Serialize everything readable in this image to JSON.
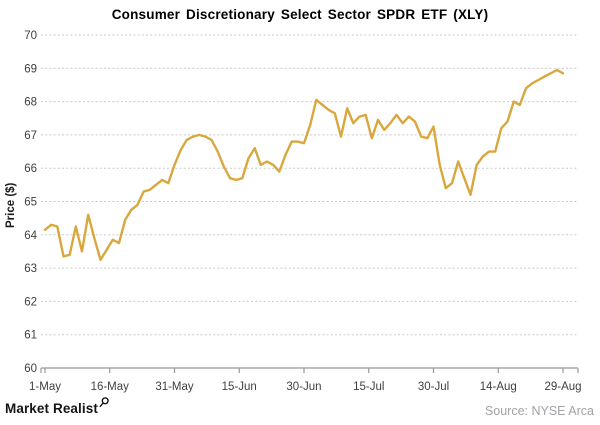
{
  "footer": {
    "brand": "Market Realist",
    "brand_icon": "magnifier-icon",
    "source": "Source: NYSE Arca"
  },
  "colors": {
    "line": "#D8A73E",
    "grid": "#c9c9c9",
    "axis": "#999999",
    "tick_text": "#404040",
    "title_text": "#000000",
    "source_text": "#a2a2a7"
  },
  "chart_data": {
    "type": "line",
    "title": "Consumer Discretionary Select Sector SPDR ETF (XLY)",
    "xlabel": "",
    "ylabel": "Price ($)",
    "ylim": [
      60,
      70
    ],
    "y_ticks": [
      60,
      61,
      62,
      63,
      64,
      65,
      66,
      67,
      68,
      69,
      70
    ],
    "x_tick_labels": [
      "1-May",
      "16-May",
      "31-May",
      "15-Jun",
      "30-Jun",
      "15-Jul",
      "30-Jul",
      "14-Aug",
      "29-Aug"
    ],
    "grid": "horizontal-dashed",
    "legend": "none",
    "series": [
      {
        "name": "XLY price",
        "color": "#D8A73E",
        "values": [
          64.15,
          64.3,
          64.25,
          63.35,
          63.4,
          64.25,
          63.5,
          64.6,
          63.9,
          63.25,
          63.55,
          63.85,
          63.75,
          64.45,
          64.75,
          64.9,
          65.3,
          65.35,
          65.5,
          65.65,
          65.55,
          66.1,
          66.55,
          66.85,
          66.95,
          67.0,
          66.95,
          66.85,
          66.5,
          66.05,
          65.7,
          65.65,
          65.7,
          66.3,
          66.6,
          66.1,
          66.2,
          66.1,
          65.9,
          66.4,
          66.8,
          66.8,
          66.75,
          67.3,
          68.05,
          67.9,
          67.75,
          67.65,
          66.95,
          67.8,
          67.35,
          67.55,
          67.6,
          66.9,
          67.45,
          67.15,
          67.35,
          67.6,
          67.35,
          67.55,
          67.4,
          66.95,
          66.9,
          67.25,
          66.1,
          65.4,
          65.55,
          66.2,
          65.7,
          65.2,
          66.1,
          66.35,
          66.5,
          66.5,
          67.2,
          67.4,
          68.0,
          67.9,
          68.4,
          68.55,
          68.65,
          68.75,
          68.85,
          68.95,
          68.85
        ]
      }
    ]
  }
}
